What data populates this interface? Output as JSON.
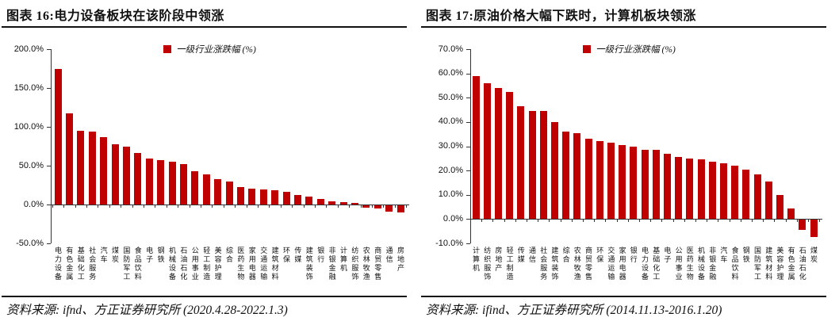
{
  "colors": {
    "bar_red": "#c00000",
    "rule_black": "#111111",
    "axis_gray": "#333333"
  },
  "chart_data": [
    {
      "type": "bar",
      "title": "图表 16:电力设备板块在该阶段中领涨",
      "legend": "一级行业涨跌幅 (%)",
      "source": "资料来源: ifnd、方正证券研究所 (2020.4.28-2022.1.3)",
      "xlabel": "",
      "ylabel": "",
      "ylim": [
        -50,
        200
      ],
      "grid": false,
      "legend_position": "top-center",
      "y_tick_labels": [
        "200.0%",
        "150.0%",
        "100.0%",
        "50.0%",
        "0.0%",
        "-50.0%"
      ],
      "y_tick_values": [
        200,
        150,
        100,
        50,
        0,
        -50
      ],
      "categories": [
        "电力设备",
        "有色金属",
        "基础化工",
        "社会服务",
        "汽车",
        "煤炭",
        "国防军工",
        "食品饮料",
        "电子",
        "钢铁",
        "机械设备",
        "石油石化",
        "公用事业",
        "轻工制造",
        "美容护理",
        "综合",
        "医药生物",
        "家用电器",
        "交通运输",
        "建筑材料",
        "环保",
        "传媒",
        "建筑装饰",
        "银行",
        "非银金融",
        "计算机",
        "纺织服饰",
        "农林牧渔",
        "商贸零售",
        "通信",
        "房地产"
      ],
      "values": [
        175,
        117,
        95,
        94,
        87,
        78,
        75,
        66,
        59,
        57,
        55,
        52,
        43,
        39,
        33,
        30,
        22,
        20,
        19,
        18,
        16,
        12,
        10,
        7,
        4,
        3,
        2,
        -3,
        -4,
        -8,
        -9
      ]
    },
    {
      "type": "bar",
      "title": "图表 17:原油价格大幅下跌时，计算机板块领涨",
      "legend": "一级行业涨跌幅 (%)",
      "source": "资料来源: ifind、方正证券研究所 (2014.11.13-2016.1.20)",
      "xlabel": "",
      "ylabel": "",
      "ylim": [
        -10,
        70
      ],
      "grid": false,
      "legend_position": "top-center",
      "y_tick_labels": [
        "70.0%",
        "60.0%",
        "50.0%",
        "40.0%",
        "30.0%",
        "20.0%",
        "10.0%",
        "0.0%",
        "-10.0%"
      ],
      "y_tick_values": [
        70,
        60,
        50,
        40,
        30,
        20,
        10,
        0,
        -10
      ],
      "categories": [
        "计算机",
        "纺织服饰",
        "房地产",
        "轻工制造",
        "传媒",
        "通信",
        "社会服务",
        "建筑装饰",
        "综合",
        "农林牧渔",
        "商贸零售",
        "环保",
        "交通运输",
        "家用电器",
        "银行",
        "电力设备",
        "基础化工",
        "电子",
        "公用事业",
        "医药生物",
        "机械设备",
        "非银金融",
        "汽车",
        "食品饮料",
        "钢铁",
        "国防军工",
        "建筑材料",
        "美容护理",
        "有色金属",
        "石油石化",
        "煤炭"
      ],
      "values": [
        59,
        56,
        54,
        52.5,
        46.5,
        44.5,
        44.5,
        40,
        36,
        35.5,
        33,
        32,
        31.5,
        30.5,
        30,
        28.5,
        28.5,
        27,
        25.5,
        25,
        24.5,
        23.5,
        23,
        22,
        20.5,
        18.5,
        15.5,
        10,
        4.5,
        -4,
        -7
      ]
    }
  ]
}
